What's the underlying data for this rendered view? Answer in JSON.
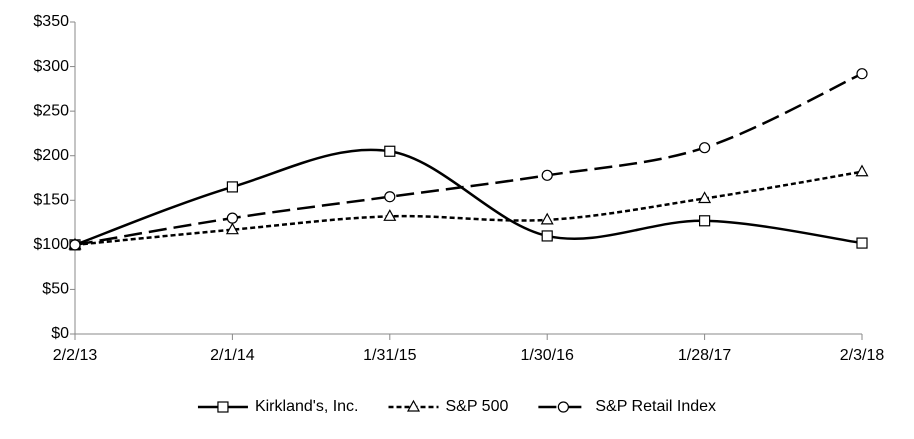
{
  "chart_data": {
    "type": "line",
    "categories": [
      "2/2/13",
      "2/1/14",
      "1/31/15",
      "1/30/16",
      "1/28/17",
      "2/3/18"
    ],
    "series": [
      {
        "name": "Kirkland's, Inc.",
        "color": "#000000",
        "dash": "solid",
        "marker": "square",
        "values": [
          100,
          165,
          205,
          110,
          127,
          102
        ]
      },
      {
        "name": "S&P 500",
        "color": "#000000",
        "dash": "dotted",
        "marker": "triangle",
        "values": [
          100,
          117,
          132,
          128,
          152,
          182
        ]
      },
      {
        "name": "S&P Retail Index",
        "color": "#000000",
        "dash": "dashed",
        "marker": "circle",
        "values": [
          100,
          130,
          154,
          178,
          209,
          292
        ]
      }
    ],
    "ylim": [
      0,
      350
    ],
    "yticks": [
      {
        "value": 0,
        "label": "$0"
      },
      {
        "value": 50,
        "label": "$50"
      },
      {
        "value": 100,
        "label": "$100"
      },
      {
        "value": 150,
        "label": "$150"
      },
      {
        "value": 200,
        "label": "$200"
      },
      {
        "value": 250,
        "label": "$250"
      },
      {
        "value": 300,
        "label": "$300"
      },
      {
        "value": 350,
        "label": "$350"
      }
    ],
    "smooth": true,
    "grid": false,
    "legend": "bottom"
  }
}
